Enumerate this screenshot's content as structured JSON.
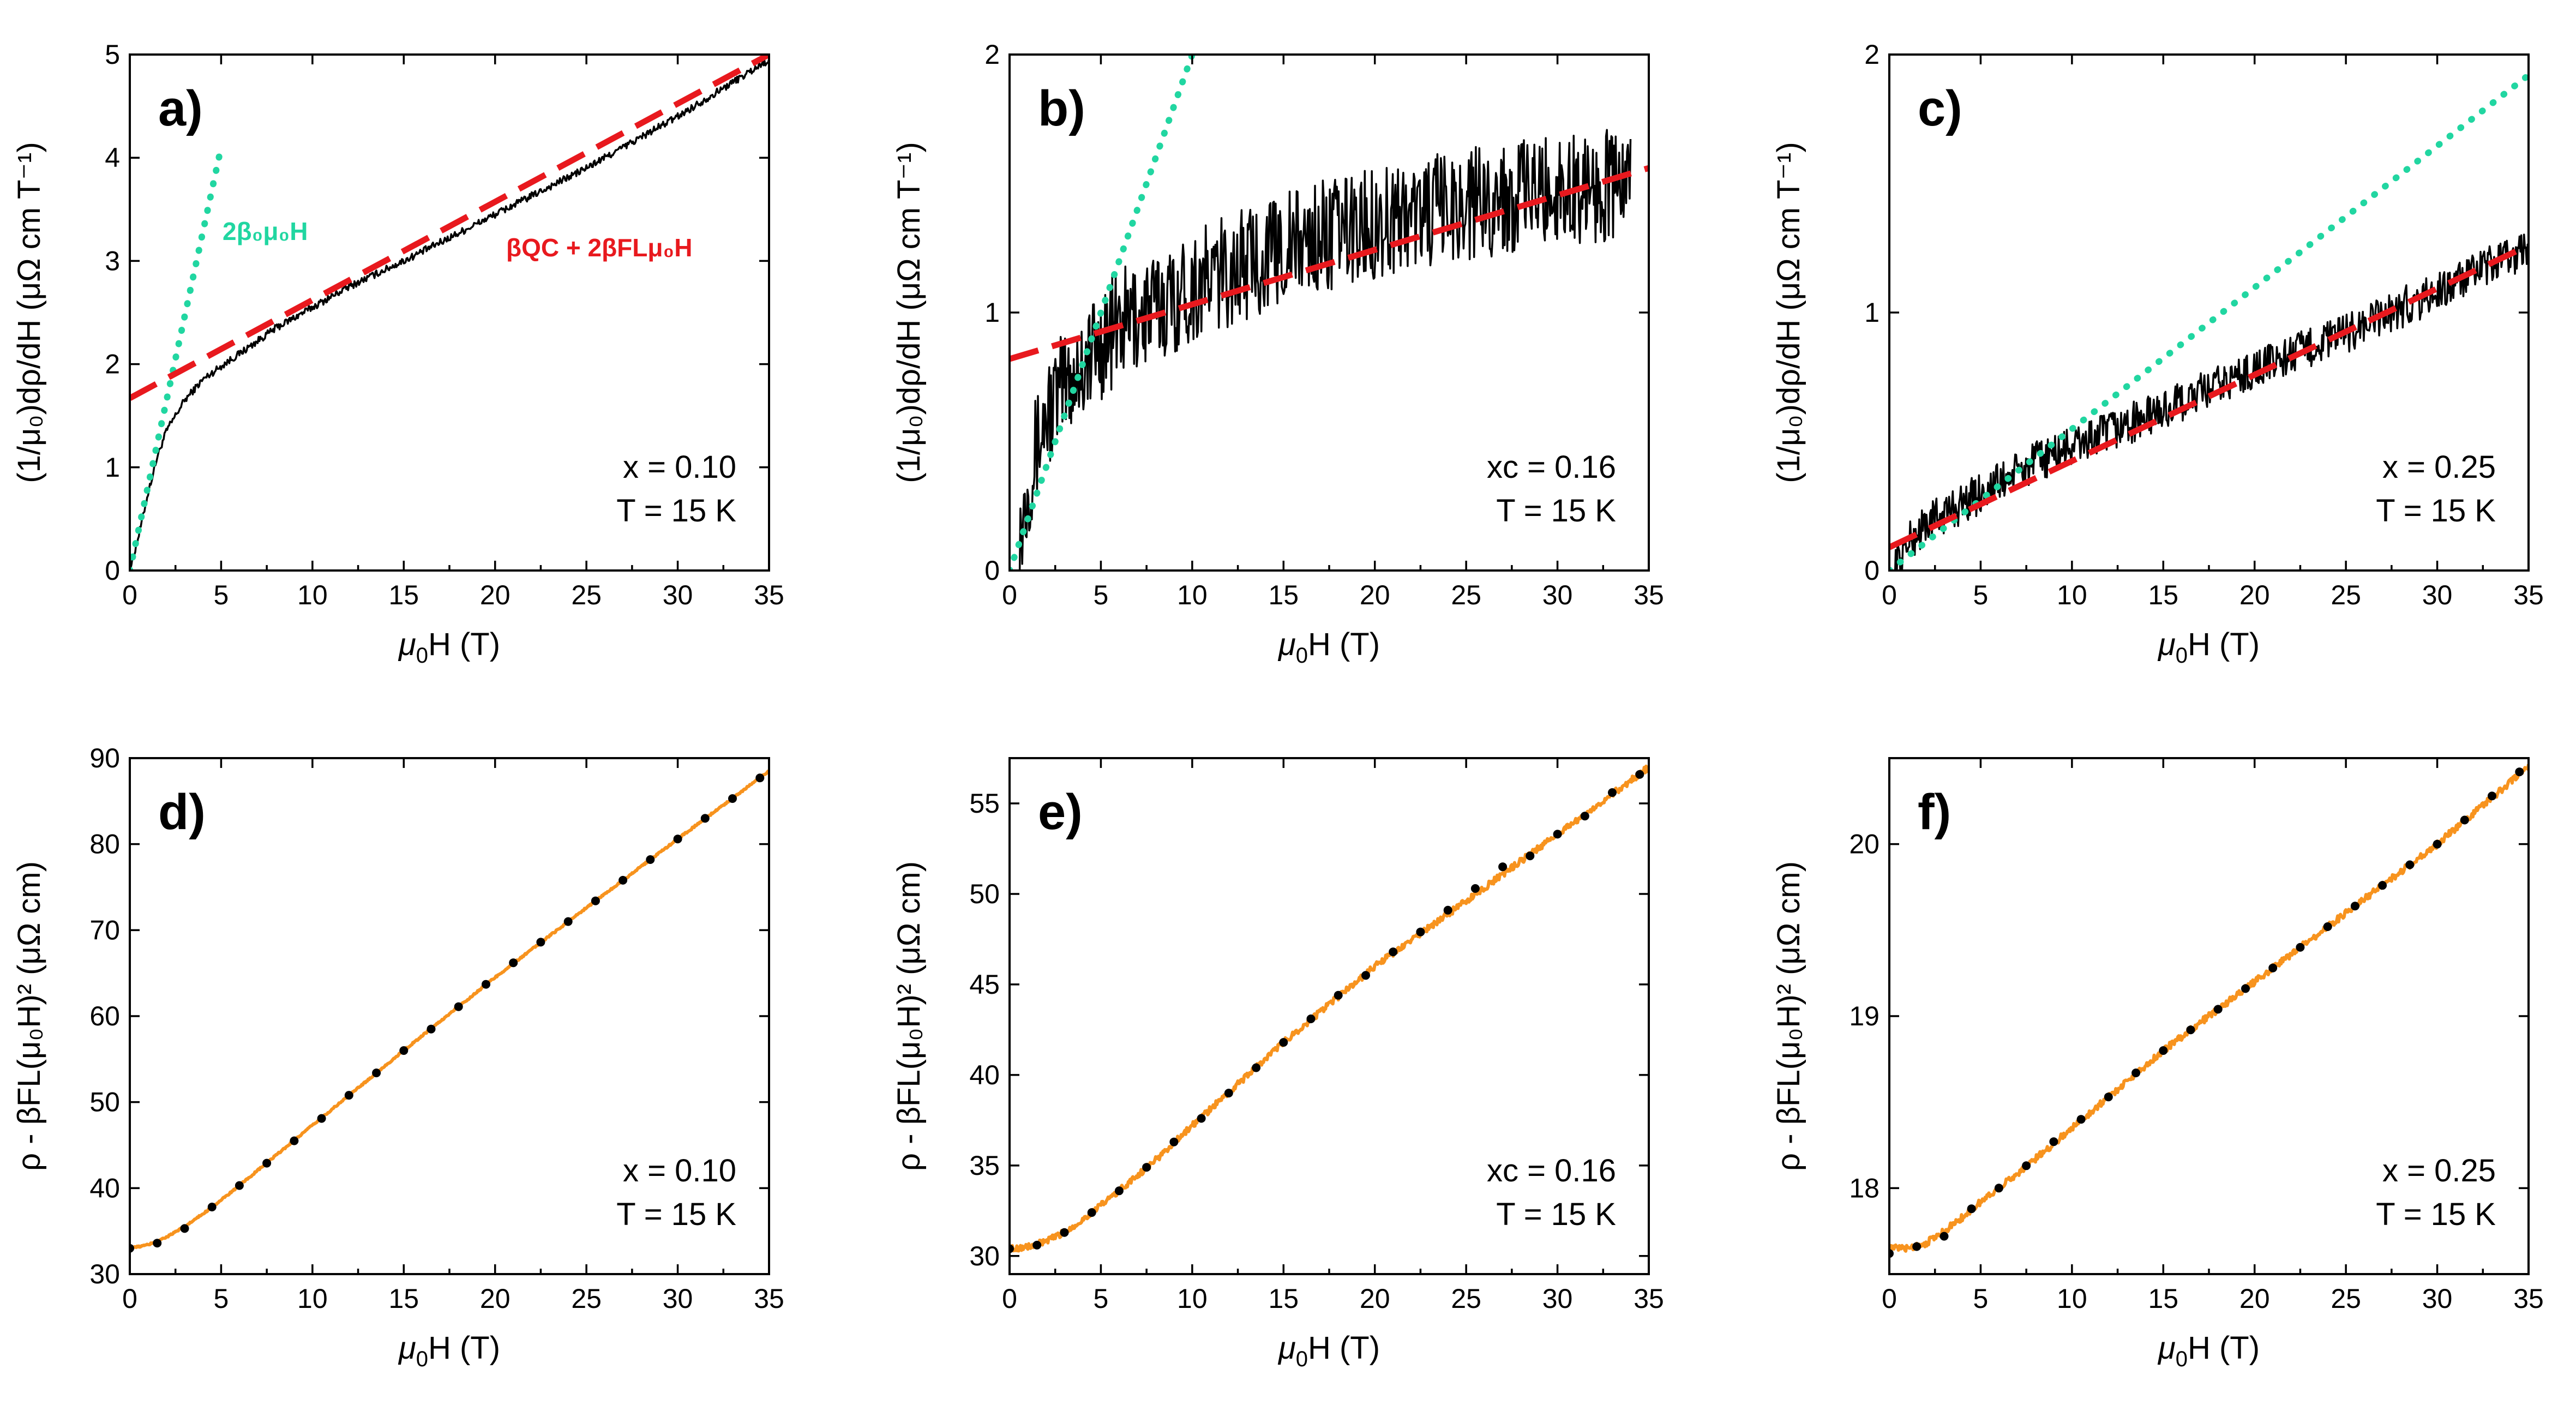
{
  "chart_data": [
    {
      "id": "a",
      "type": "line",
      "panel_label": "a)",
      "xlabel": {
        "main": "μ",
        "sub": "0",
        "tail": "H (T)"
      },
      "ylabel": "(1/μ₀)dρ/dH (μΩ cm T⁻¹)",
      "xlim": [
        0,
        35
      ],
      "ylim": [
        0,
        5
      ],
      "xticks": [
        0,
        5,
        10,
        15,
        20,
        25,
        30,
        35
      ],
      "yticks": [
        0,
        1,
        2,
        3,
        4,
        5
      ],
      "annotation": {
        "line1": "x = 0.10",
        "line2": "T = 15 K"
      },
      "fit_labels": [
        {
          "text": "2β₀μ₀H",
          "color": "#21d6a1"
        },
        {
          "text": "βQC + 2βFLμ₀H",
          "color": "#e8191e"
        }
      ],
      "series": [
        {
          "name": "data",
          "kind": "noisy",
          "color": "#000000",
          "x": [
            0,
            0.5,
            1,
            1.5,
            2,
            3,
            4,
            5,
            6,
            8,
            10,
            12,
            15,
            20,
            25,
            30,
            35
          ],
          "y": [
            0,
            0.35,
            0.75,
            1.1,
            1.35,
            1.65,
            1.85,
            1.98,
            2.1,
            2.35,
            2.55,
            2.75,
            3.0,
            3.45,
            3.9,
            4.4,
            4.95
          ],
          "noise": 0.035
        },
        {
          "name": "2β₀μ₀H",
          "kind": "dotted",
          "color": "#21d6a1",
          "x": [
            0,
            5
          ],
          "y": [
            0,
            4.1
          ]
        },
        {
          "name": "βQC + 2βFLμ₀H",
          "kind": "dashed",
          "color": "#e8191e",
          "x": [
            0,
            35
          ],
          "y": [
            1.67,
            5.0
          ]
        }
      ]
    },
    {
      "id": "b",
      "type": "line",
      "panel_label": "b)",
      "xlabel": {
        "main": "μ",
        "sub": "0",
        "tail": "H (T)"
      },
      "ylabel": "(1/μ₀)dρ/dH (μΩ cm T⁻¹)",
      "xlim": [
        0,
        35
      ],
      "ylim": [
        0,
        2
      ],
      "xticks": [
        0,
        5,
        10,
        15,
        20,
        25,
        30,
        35
      ],
      "yticks": [
        0,
        1,
        2
      ],
      "annotation": {
        "line1": "xc = 0.16",
        "line2": "T = 15 K"
      },
      "series": [
        {
          "name": "data",
          "kind": "noisy",
          "color": "#000000",
          "x": [
            0.5,
            1,
            2,
            3,
            4,
            5,
            6,
            8,
            10,
            15,
            20,
            25,
            30,
            34
          ],
          "y": [
            0.1,
            0.35,
            0.6,
            0.72,
            0.8,
            0.88,
            0.95,
            1.02,
            1.1,
            1.25,
            1.35,
            1.42,
            1.48,
            1.5
          ],
          "noise": 0.22
        },
        {
          "name": "2β₀μ₀H",
          "kind": "dotted",
          "color": "#21d6a1",
          "x": [
            0,
            10
          ],
          "y": [
            0,
            2.0
          ]
        },
        {
          "name": "βQC + 2βFLμ₀H",
          "kind": "dashed",
          "color": "#e8191e",
          "x": [
            0,
            35
          ],
          "y": [
            0.82,
            1.56
          ]
        }
      ]
    },
    {
      "id": "c",
      "type": "line",
      "panel_label": "c)",
      "xlabel": {
        "main": "μ",
        "sub": "0",
        "tail": "H (T)"
      },
      "ylabel": "(1/μ₀)dρ/dH (μΩ cm T⁻¹)",
      "xlim": [
        0,
        35
      ],
      "ylim": [
        0,
        2
      ],
      "xticks": [
        0,
        5,
        10,
        15,
        20,
        25,
        30,
        35
      ],
      "yticks": [
        0,
        1,
        2
      ],
      "annotation": {
        "line1": "x = 0.25",
        "line2": "T = 15 K"
      },
      "series": [
        {
          "name": "data",
          "kind": "noisy",
          "color": "#000000",
          "x": [
            0.3,
            1,
            2,
            3,
            5,
            8,
            10,
            15,
            20,
            25,
            30,
            35
          ],
          "y": [
            0.02,
            0.1,
            0.18,
            0.22,
            0.3,
            0.42,
            0.48,
            0.62,
            0.78,
            0.92,
            1.08,
            1.25
          ],
          "noise": 0.08
        },
        {
          "name": "2β₀μ₀H",
          "kind": "dotted",
          "color": "#21d6a1",
          "x": [
            0,
            35
          ],
          "y": [
            0,
            1.92
          ]
        },
        {
          "name": "βQC + 2βFLμ₀H",
          "kind": "dashed",
          "color": "#e8191e",
          "x": [
            0,
            35
          ],
          "y": [
            0.09,
            1.26
          ]
        }
      ]
    },
    {
      "id": "d",
      "type": "line",
      "panel_label": "d)",
      "xlabel": {
        "main": "μ",
        "sub": "0",
        "tail": "H (T)"
      },
      "ylabel": "ρ - βFL(μ₀H)² (μΩ cm)",
      "xlim": [
        0,
        35
      ],
      "ylim": [
        30,
        90
      ],
      "xticks": [
        0,
        5,
        10,
        15,
        20,
        25,
        30,
        35
      ],
      "yticks": [
        30,
        40,
        50,
        60,
        70,
        80,
        90
      ],
      "annotation": {
        "line1": "x = 0.10",
        "line2": "T = 15 K"
      },
      "series": [
        {
          "name": "data",
          "kind": "noisy",
          "color": "#f7931e",
          "x": [
            0,
            1,
            2,
            3,
            4,
            5,
            6,
            8,
            10,
            15,
            20,
            25,
            30,
            35
          ],
          "y": [
            33.0,
            33.4,
            34.3,
            35.5,
            37.0,
            38.6,
            40.3,
            43.8,
            47.3,
            56.0,
            64.5,
            72.6,
            80.6,
            88.5
          ],
          "noise": 0.1
        },
        {
          "name": "fit",
          "kind": "dots",
          "color": "#000000",
          "x": [
            0,
            1.5,
            3,
            4.5,
            6,
            7.5,
            9,
            10.5,
            12,
            13.5,
            15,
            16.5,
            18,
            19.5,
            21,
            22.5,
            24,
            25.5,
            27,
            28.5,
            30,
            31.5,
            33,
            34.5
          ],
          "y": [
            33.0,
            33.6,
            35.3,
            37.8,
            40.3,
            42.9,
            45.5,
            48.1,
            50.8,
            53.4,
            56.0,
            58.5,
            61.1,
            63.7,
            66.2,
            68.6,
            71.0,
            73.4,
            75.8,
            78.2,
            80.6,
            83.0,
            85.3,
            87.7
          ]
        }
      ]
    },
    {
      "id": "e",
      "type": "line",
      "panel_label": "e)",
      "xlabel": {
        "main": "μ",
        "sub": "0",
        "tail": "H (T)"
      },
      "ylabel": "ρ - βFL(μ₀H)² (μΩ cm)",
      "xlim": [
        0,
        35
      ],
      "ylim": [
        29,
        57.5
      ],
      "xticks": [
        0,
        5,
        10,
        15,
        20,
        25,
        30,
        35
      ],
      "yticks": [
        30,
        35,
        40,
        45,
        50,
        55
      ],
      "annotation": {
        "line1": "xc = 0.16",
        "line2": "T = 15 K"
      },
      "series": [
        {
          "name": "data",
          "kind": "noisy",
          "color": "#f7931e",
          "x": [
            0,
            1,
            2,
            3,
            4,
            5,
            6,
            8,
            10,
            15,
            20,
            25,
            30,
            35
          ],
          "y": [
            30.4,
            30.5,
            30.8,
            31.3,
            32.0,
            32.8,
            33.6,
            35.3,
            37.2,
            41.8,
            46.0,
            49.6,
            53.3,
            57.0
          ],
          "noise": 0.18
        },
        {
          "name": "fit",
          "kind": "dots",
          "color": "#000000",
          "x": [
            0,
            1.5,
            3,
            4.5,
            6,
            7.5,
            9,
            10.5,
            12,
            13.5,
            15,
            16.5,
            18,
            19.5,
            21,
            22.5,
            24,
            25.5,
            27,
            28.5,
            30,
            31.5,
            33,
            34.5
          ],
          "y": [
            30.4,
            30.6,
            31.3,
            32.4,
            33.6,
            34.9,
            36.3,
            37.6,
            39.0,
            40.4,
            41.8,
            43.1,
            44.4,
            45.5,
            46.8,
            47.9,
            49.1,
            50.3,
            51.5,
            52.1,
            53.3,
            54.3,
            55.6,
            56.6
          ]
        }
      ]
    },
    {
      "id": "f",
      "type": "line",
      "panel_label": "f)",
      "xlabel": {
        "main": "μ",
        "sub": "0",
        "tail": "H (T)"
      },
      "ylabel": "ρ - βFL(μ₀H)² (μΩ cm)",
      "xlim": [
        0,
        35
      ],
      "ylim": [
        17.5,
        20.5
      ],
      "xticks": [
        0,
        5,
        10,
        15,
        20,
        25,
        30,
        35
      ],
      "yticks": [
        18,
        19,
        20
      ],
      "annotation": {
        "line1": "x = 0.25",
        "line2": "T = 15 K"
      },
      "series": [
        {
          "name": "data",
          "kind": "noisy",
          "color": "#f7931e",
          "x": [
            0,
            1,
            2,
            3,
            4,
            5,
            6,
            8,
            10,
            15,
            20,
            25,
            30,
            35
          ],
          "y": [
            17.65,
            17.65,
            17.68,
            17.75,
            17.83,
            17.92,
            18.0,
            18.17,
            18.35,
            18.8,
            19.2,
            19.6,
            20.0,
            20.45
          ],
          "noise": 0.02
        },
        {
          "name": "fit",
          "kind": "dots",
          "color": "#000000",
          "x": [
            0,
            1.5,
            3,
            4.5,
            6,
            7.5,
            9,
            10.5,
            12,
            13.5,
            15,
            16.5,
            18,
            19.5,
            21,
            22.5,
            24,
            25.5,
            27,
            28.5,
            30,
            31.5,
            33,
            34.5
          ],
          "y": [
            17.62,
            17.66,
            17.72,
            17.88,
            18.0,
            18.13,
            18.27,
            18.4,
            18.53,
            18.67,
            18.8,
            18.92,
            19.04,
            19.16,
            19.28,
            19.4,
            19.52,
            19.64,
            19.76,
            19.88,
            20.0,
            20.14,
            20.28,
            20.42
          ]
        }
      ]
    }
  ]
}
